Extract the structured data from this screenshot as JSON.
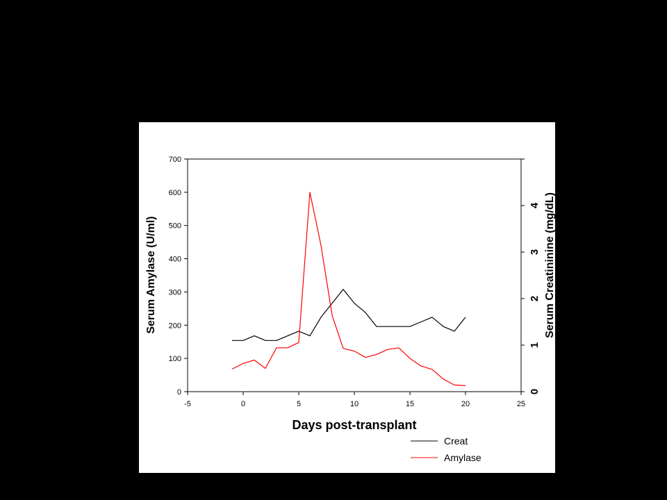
{
  "chart_data": {
    "type": "line",
    "xlabel": "Days post-transplant",
    "ylabel": "Serum Amylase (U/ml)",
    "y2label": "Serum Creatininine (mg/dL)",
    "xlim": [
      -5,
      25
    ],
    "ylim": [
      0,
      700
    ],
    "y2lim": [
      0,
      5
    ],
    "x_ticks": [
      "-5",
      "0",
      "5",
      "10",
      "15",
      "20",
      "25"
    ],
    "y_ticks": [
      "0",
      "100",
      "200",
      "300",
      "400",
      "500",
      "600",
      "700"
    ],
    "y2_ticks": [
      "0",
      "1",
      "2",
      "3",
      "4"
    ],
    "grid": false,
    "legend_position": "bottom-right",
    "series": [
      {
        "name": "Creat",
        "axis": "right",
        "color": "#000000",
        "x": [
          -1,
          0,
          1,
          2,
          3,
          4,
          5,
          6,
          7,
          8,
          9,
          10,
          11,
          12,
          13,
          14,
          15,
          16,
          17,
          18,
          19,
          20
        ],
        "values": [
          1.1,
          1.1,
          1.2,
          1.1,
          1.1,
          1.2,
          1.3,
          1.2,
          1.6,
          1.9,
          2.2,
          1.9,
          1.7,
          1.4,
          1.4,
          1.4,
          1.4,
          1.5,
          1.6,
          1.4,
          1.3,
          1.6
        ]
      },
      {
        "name": "Amylase",
        "axis": "left",
        "color": "#ff0000",
        "x": [
          -1,
          0,
          1,
          2,
          3,
          4,
          5,
          6,
          7,
          8,
          9,
          10,
          11,
          12,
          13,
          14,
          15,
          16,
          17,
          18,
          19,
          20
        ],
        "values": [
          68,
          85,
          95,
          70,
          132,
          132,
          148,
          600,
          440,
          230,
          130,
          122,
          103,
          112,
          127,
          132,
          100,
          77,
          67,
          38,
          20,
          18
        ]
      }
    ]
  }
}
